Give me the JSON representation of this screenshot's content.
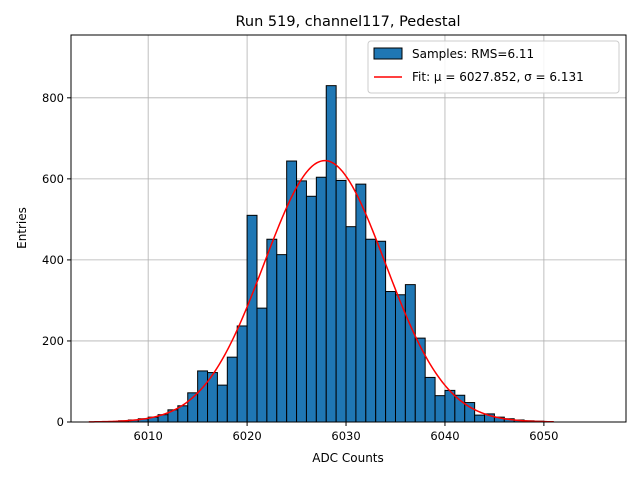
{
  "chart_data": {
    "type": "bar",
    "title": "Run 519, channel117, Pedestal",
    "xlabel": "ADC Counts",
    "ylabel": "Entries",
    "xlim": [
      6002.2,
      6058.3
    ],
    "ylim": [
      0,
      955
    ],
    "xticks": [
      6010,
      6020,
      6030,
      6040,
      6050
    ],
    "yticks": [
      0,
      200,
      400,
      600,
      800
    ],
    "grid": true,
    "legend_position": "top-right",
    "bin_width": 1,
    "bin_start": 6006,
    "counts": [
      1,
      3,
      5,
      8,
      12,
      18,
      30,
      40,
      72,
      126,
      122,
      91,
      160,
      237,
      510,
      281,
      451,
      413,
      644,
      595,
      557,
      604,
      830,
      596,
      482,
      587,
      451,
      446,
      322,
      314,
      339,
      207,
      110,
      65,
      78,
      66,
      48,
      17,
      20,
      12,
      8,
      5,
      3,
      2
    ],
    "series": [
      {
        "name": "Samples: RMS=6.11",
        "kind": "histogram",
        "color": "#1f77b4",
        "edge_color": "#000000"
      },
      {
        "name": "Fit: μ = 6027.852, σ = 6.131",
        "kind": "gaussian_fit",
        "color": "#ff0000",
        "mu": 6027.852,
        "sigma": 6.131,
        "amplitude": 645,
        "x_range": [
          6004,
          6051
        ]
      }
    ]
  }
}
